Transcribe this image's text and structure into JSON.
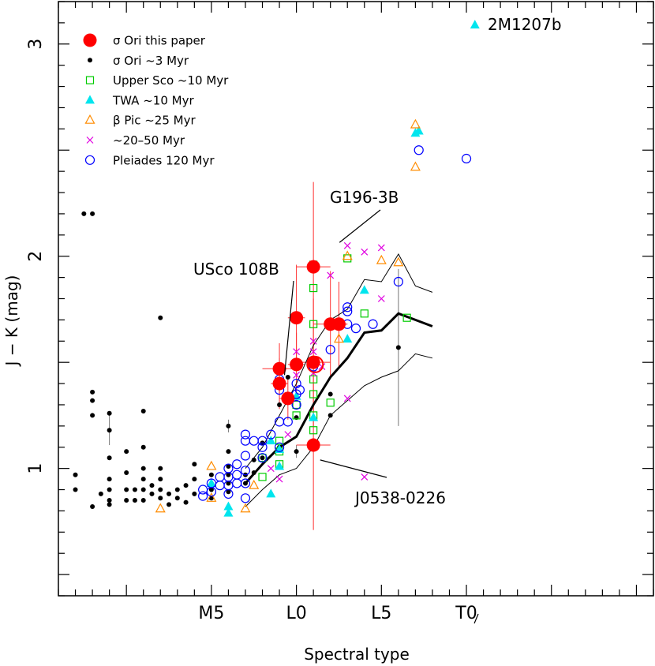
{
  "chart_data": {
    "type": "scatter",
    "xlabel": "Spectral type",
    "ylabel": "J − K (mag)",
    "xlim": [
      -14,
      21
    ],
    "ylim": [
      0.4,
      3.2
    ],
    "x_ticks": [
      {
        "x": -5,
        "label": "M5"
      },
      {
        "x": 0,
        "label": "L0"
      },
      {
        "x": 5,
        "label": "L5"
      },
      {
        "x": 10,
        "label": "T0"
      }
    ],
    "y_ticks": [
      {
        "y": 1,
        "label": "1"
      },
      {
        "y": 2,
        "label": "2"
      },
      {
        "y": 3,
        "label": "3"
      }
    ],
    "grid": false,
    "legend_position": "top-left",
    "series": [
      {
        "name": "σ Ori this paper",
        "marker": "filled-circle-large",
        "color": "#ff0000",
        "points": [
          {
            "x": -1,
            "y": 1.47,
            "xerr": 1.0,
            "yerr": 0.12
          },
          {
            "x": -1,
            "y": 1.4,
            "xerr": 0.5,
            "yerr": 0.12
          },
          {
            "x": -0.5,
            "y": 1.33,
            "xerr": 0.5,
            "yerr": 0.1
          },
          {
            "x": 0,
            "y": 1.71,
            "xerr": 0.5,
            "yerr": 0.25
          },
          {
            "x": 0,
            "y": 1.49,
            "xerr": 0.5,
            "yerr": 0.15
          },
          {
            "x": 1,
            "y": 1.95,
            "xerr": 1.0,
            "yerr": 0.4
          },
          {
            "x": 1,
            "y": 1.5,
            "xerr": 1.0,
            "yerr": 0.3
          },
          {
            "x": 1,
            "y": 1.11,
            "xerr": 1.0,
            "yerr": 0.4
          },
          {
            "x": 2,
            "y": 1.68,
            "xerr": 1.0,
            "yerr": 0.25
          },
          {
            "x": 2.5,
            "y": 1.68,
            "xerr": 0.5,
            "yerr": 0.2
          }
        ]
      },
      {
        "name": "σ Ori ~3 Myr",
        "marker": "dot",
        "color": "#000000",
        "points": [
          {
            "x": -13,
            "y": 0.97
          },
          {
            "x": -13,
            "y": 0.9
          },
          {
            "x": -12.5,
            "y": 2.2
          },
          {
            "x": -12,
            "y": 2.2
          },
          {
            "x": -12,
            "y": 1.36
          },
          {
            "x": -12,
            "y": 1.32
          },
          {
            "x": -12,
            "y": 1.25
          },
          {
            "x": -12,
            "y": 0.82
          },
          {
            "x": -11.5,
            "y": 0.88
          },
          {
            "x": -11,
            "y": 1.26
          },
          {
            "x": -11,
            "y": 1.18
          },
          {
            "x": -11,
            "y": 1.05
          },
          {
            "x": -11,
            "y": 0.95
          },
          {
            "x": -11,
            "y": 0.9
          },
          {
            "x": -11,
            "y": 0.85
          },
          {
            "x": -11,
            "y": 0.83
          },
          {
            "x": -10,
            "y": 1.08
          },
          {
            "x": -10,
            "y": 0.98
          },
          {
            "x": -10,
            "y": 0.9
          },
          {
            "x": -10,
            "y": 0.85
          },
          {
            "x": -9.5,
            "y": 0.9
          },
          {
            "x": -9.5,
            "y": 0.85
          },
          {
            "x": -9,
            "y": 1.27
          },
          {
            "x": -9,
            "y": 1.1
          },
          {
            "x": -9,
            "y": 1.0
          },
          {
            "x": -9,
            "y": 0.95
          },
          {
            "x": -9,
            "y": 0.9
          },
          {
            "x": -9,
            "y": 0.85
          },
          {
            "x": -8.5,
            "y": 0.92
          },
          {
            "x": -8.5,
            "y": 0.88
          },
          {
            "x": -8,
            "y": 1.71
          },
          {
            "x": -8,
            "y": 1.0
          },
          {
            "x": -8,
            "y": 0.95
          },
          {
            "x": -8,
            "y": 0.9
          },
          {
            "x": -8,
            "y": 0.86
          },
          {
            "x": -7.5,
            "y": 0.88
          },
          {
            "x": -7.5,
            "y": 0.83
          },
          {
            "x": -7,
            "y": 0.9
          },
          {
            "x": -7,
            "y": 0.86
          },
          {
            "x": -6.5,
            "y": 0.92
          },
          {
            "x": -6.5,
            "y": 0.84
          },
          {
            "x": -6,
            "y": 1.02
          },
          {
            "x": -6,
            "y": 0.95
          },
          {
            "x": -6,
            "y": 0.88
          },
          {
            "x": -5,
            "y": 0.97
          },
          {
            "x": -5,
            "y": 0.9
          },
          {
            "x": -5,
            "y": 0.86
          },
          {
            "x": -4,
            "y": 1.2
          },
          {
            "x": -4,
            "y": 1.08
          },
          {
            "x": -4,
            "y": 1.01
          },
          {
            "x": -4,
            "y": 0.97
          },
          {
            "x": -4,
            "y": 0.93
          },
          {
            "x": -4,
            "y": 0.89
          },
          {
            "x": -3,
            "y": 0.97
          },
          {
            "x": -3,
            "y": 0.93
          },
          {
            "x": -2.5,
            "y": 1.04
          },
          {
            "x": -2.5,
            "y": 0.98
          },
          {
            "x": -2,
            "y": 1.12
          },
          {
            "x": -2,
            "y": 1.05
          },
          {
            "x": -1,
            "y": 1.3
          },
          {
            "x": -1,
            "y": 1.1
          },
          {
            "x": -0.5,
            "y": 1.43
          },
          {
            "x": 0,
            "y": 1.24
          },
          {
            "x": 0,
            "y": 1.08
          },
          {
            "x": 1,
            "y": 1.24
          },
          {
            "x": 2,
            "y": 1.35
          },
          {
            "x": 2,
            "y": 1.25
          },
          {
            "x": 6,
            "y": 1.57
          }
        ]
      },
      {
        "name": "Upper Sco ~10 Myr",
        "marker": "open-square",
        "color": "#00cc00",
        "points": [
          {
            "x": -2,
            "y": 0.96
          },
          {
            "x": -2,
            "y": 1.05
          },
          {
            "x": -1,
            "y": 1.13
          },
          {
            "x": -1,
            "y": 1.08
          },
          {
            "x": -1,
            "y": 1.02
          },
          {
            "x": 0,
            "y": 1.3
          },
          {
            "x": 0,
            "y": 1.25
          },
          {
            "x": 1,
            "y": 1.96
          },
          {
            "x": 1,
            "y": 1.85
          },
          {
            "x": 1,
            "y": 1.68
          },
          {
            "x": 1,
            "y": 1.42
          },
          {
            "x": 1,
            "y": 1.35
          },
          {
            "x": 1,
            "y": 1.25
          },
          {
            "x": 1,
            "y": 1.18
          },
          {
            "x": 2,
            "y": 1.31
          },
          {
            "x": 3,
            "y": 1.99
          },
          {
            "x": 4,
            "y": 1.73
          },
          {
            "x": 6.5,
            "y": 1.71
          }
        ]
      },
      {
        "name": "TWA ~10 Myr",
        "marker": "filled-triangle",
        "color": "#00e5ee",
        "points": [
          {
            "x": -5,
            "y": 0.93
          },
          {
            "x": -4,
            "y": 0.82
          },
          {
            "x": -4,
            "y": 0.79
          },
          {
            "x": -1.5,
            "y": 0.88
          },
          {
            "x": -1.5,
            "y": 1.13
          },
          {
            "x": -1,
            "y": 1.01
          },
          {
            "x": -1,
            "y": 1.09
          },
          {
            "x": 0,
            "y": 1.34
          },
          {
            "x": 1,
            "y": 1.24
          },
          {
            "x": 3,
            "y": 1.61
          },
          {
            "x": 4,
            "y": 1.84
          },
          {
            "x": 7,
            "y": 2.58
          },
          {
            "x": 7.2,
            "y": 2.59
          },
          {
            "x": 10.5,
            "y": 3.09
          }
        ]
      },
      {
        "name": "β Pic ~25 Myr",
        "marker": "open-triangle",
        "color": "#ff8c00",
        "points": [
          {
            "x": -8,
            "y": 0.81
          },
          {
            "x": -5,
            "y": 1.01
          },
          {
            "x": -5,
            "y": 0.86
          },
          {
            "x": -3,
            "y": 0.81
          },
          {
            "x": -2.5,
            "y": 0.92
          },
          {
            "x": 2.5,
            "y": 1.61
          },
          {
            "x": 3,
            "y": 2.0
          },
          {
            "x": 5,
            "y": 1.98
          },
          {
            "x": 6,
            "y": 1.97
          },
          {
            "x": 7,
            "y": 2.62
          },
          {
            "x": 7,
            "y": 2.42
          }
        ]
      },
      {
        "name": "~20–50 Myr",
        "marker": "cross",
        "color": "#e000e0",
        "points": [
          {
            "x": -1.5,
            "y": 1.0
          },
          {
            "x": -1,
            "y": 0.95
          },
          {
            "x": -0.5,
            "y": 1.16
          },
          {
            "x": 0,
            "y": 1.55
          },
          {
            "x": 0,
            "y": 1.44
          },
          {
            "x": 1,
            "y": 1.6
          },
          {
            "x": 1,
            "y": 1.55
          },
          {
            "x": 1,
            "y": 1.45
          },
          {
            "x": 1.5,
            "y": 1.48
          },
          {
            "x": 2,
            "y": 1.91
          },
          {
            "x": 3,
            "y": 2.05
          },
          {
            "x": 3,
            "y": 1.33
          },
          {
            "x": 4,
            "y": 2.02
          },
          {
            "x": 4,
            "y": 0.96
          },
          {
            "x": 5,
            "y": 2.04
          },
          {
            "x": 5,
            "y": 1.8
          }
        ]
      },
      {
        "name": "Pleiades 120 Myr",
        "marker": "open-circle",
        "color": "#0000ff",
        "points": [
          {
            "x": -5.5,
            "y": 0.9
          },
          {
            "x": -5.5,
            "y": 0.87
          },
          {
            "x": -5,
            "y": 0.93
          },
          {
            "x": -5,
            "y": 0.89
          },
          {
            "x": -4.5,
            "y": 0.96
          },
          {
            "x": -4.5,
            "y": 0.92
          },
          {
            "x": -4,
            "y": 1.0
          },
          {
            "x": -4,
            "y": 0.96
          },
          {
            "x": -4,
            "y": 0.92
          },
          {
            "x": -4,
            "y": 0.88
          },
          {
            "x": -3.5,
            "y": 1.02
          },
          {
            "x": -3.5,
            "y": 0.97
          },
          {
            "x": -3.5,
            "y": 0.93
          },
          {
            "x": -3,
            "y": 1.16
          },
          {
            "x": -3,
            "y": 1.13
          },
          {
            "x": -3,
            "y": 1.06
          },
          {
            "x": -3,
            "y": 0.99
          },
          {
            "x": -3,
            "y": 0.93
          },
          {
            "x": -3,
            "y": 0.86
          },
          {
            "x": -2.5,
            "y": 1.13
          },
          {
            "x": -2,
            "y": 1.13
          },
          {
            "x": -2,
            "y": 1.1
          },
          {
            "x": -2,
            "y": 1.05
          },
          {
            "x": -1.5,
            "y": 1.16
          },
          {
            "x": -1,
            "y": 1.42
          },
          {
            "x": -1,
            "y": 1.37
          },
          {
            "x": -1,
            "y": 1.22
          },
          {
            "x": -1,
            "y": 1.1
          },
          {
            "x": -0.5,
            "y": 1.33
          },
          {
            "x": -0.5,
            "y": 1.22
          },
          {
            "x": 0,
            "y": 1.4
          },
          {
            "x": 0,
            "y": 1.35
          },
          {
            "x": 0,
            "y": 1.3
          },
          {
            "x": 0.2,
            "y": 1.37
          },
          {
            "x": 1,
            "y": 1.48
          },
          {
            "x": 2,
            "y": 1.56
          },
          {
            "x": 3,
            "y": 1.76
          },
          {
            "x": 3,
            "y": 1.74
          },
          {
            "x": 3,
            "y": 1.68
          },
          {
            "x": 3.5,
            "y": 1.66
          },
          {
            "x": 4.5,
            "y": 1.68
          },
          {
            "x": 6,
            "y": 1.88
          },
          {
            "x": 7.2,
            "y": 2.5
          },
          {
            "x": 10,
            "y": 2.46
          }
        ]
      }
    ],
    "sequence_lines": [
      {
        "style": "thick",
        "points": [
          [
            -3,
            0.93
          ],
          [
            -2,
            1.02
          ],
          [
            -1,
            1.1
          ],
          [
            0,
            1.15
          ],
          [
            1,
            1.3
          ],
          [
            2,
            1.43
          ],
          [
            3,
            1.52
          ],
          [
            4,
            1.64
          ],
          [
            5,
            1.65
          ],
          [
            6,
            1.73
          ],
          [
            7,
            1.7
          ],
          [
            8,
            1.67
          ]
        ]
      },
      {
        "style": "thin",
        "points": [
          [
            -3,
            1.0
          ],
          [
            -2,
            1.1
          ],
          [
            -1,
            1.25
          ],
          [
            0,
            1.4
          ],
          [
            1,
            1.58
          ],
          [
            2,
            1.7
          ],
          [
            3,
            1.75
          ],
          [
            4,
            1.89
          ],
          [
            5,
            1.88
          ],
          [
            6,
            2.01
          ],
          [
            7,
            1.86
          ],
          [
            8,
            1.83
          ]
        ]
      },
      {
        "style": "thin",
        "points": [
          [
            -3,
            0.82
          ],
          [
            -2,
            0.9
          ],
          [
            -1,
            0.97
          ],
          [
            0,
            1.0
          ],
          [
            1,
            1.1
          ],
          [
            2,
            1.25
          ],
          [
            3,
            1.32
          ],
          [
            4,
            1.39
          ],
          [
            5,
            1.43
          ],
          [
            6,
            1.46
          ],
          [
            7,
            1.54
          ],
          [
            8,
            1.52
          ]
        ]
      }
    ],
    "annotations": [
      {
        "text": "2M1207b"
      },
      {
        "text": "G196-3B",
        "target": [
          3,
          2.05
        ]
      },
      {
        "text": "USco 108B",
        "target": [
          -0.7,
          1.44
        ]
      },
      {
        "text": "J0538-0226",
        "target": [
          1.4,
          1.04
        ]
      }
    ]
  }
}
